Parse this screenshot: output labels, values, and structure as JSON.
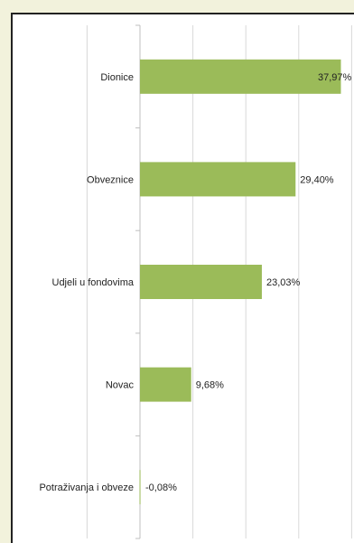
{
  "chart_data": {
    "type": "bar",
    "orientation": "horizontal",
    "title": "",
    "xlabel": "",
    "ylabel": "",
    "categories": [
      "Dionice",
      "Obveznice",
      "Udjeli u fondovima",
      "Novac",
      "Potraživanja i obveze"
    ],
    "values": [
      37.97,
      29.4,
      23.03,
      9.68,
      -0.08
    ],
    "value_labels": [
      "37,97%",
      "29,40%",
      "23,03%",
      "9,68%",
      "-0,08%"
    ],
    "xlim": [
      -10,
      40
    ],
    "grid": true,
    "legend": "none",
    "bar_color": "#9bbb59"
  }
}
